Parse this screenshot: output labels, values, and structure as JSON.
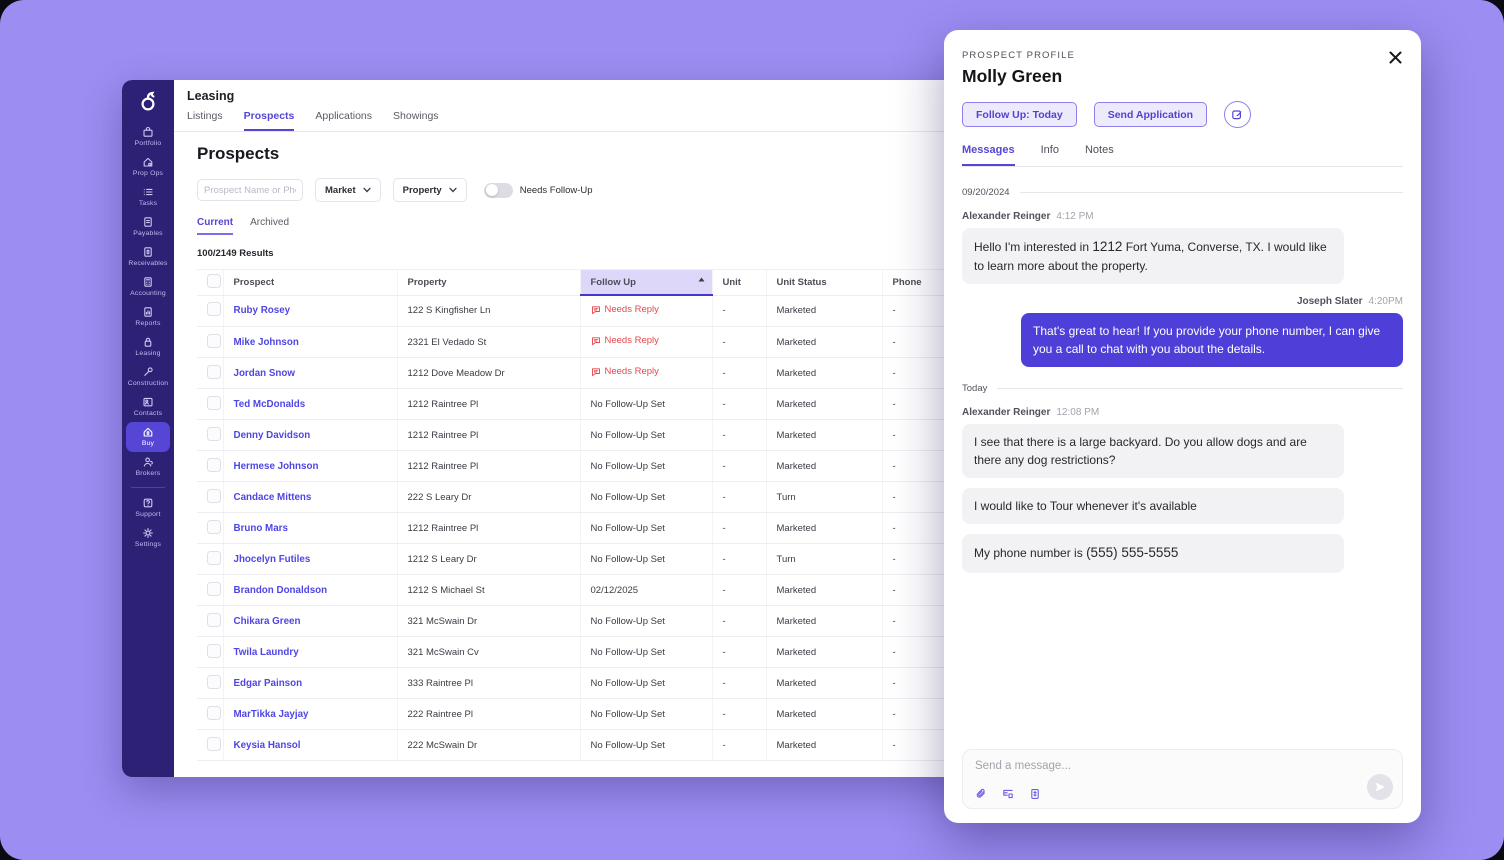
{
  "colors": {
    "background": "#9b8df2",
    "sidebar": "#2d2175",
    "sidebar_active": "#5546d5",
    "accent": "#5546d5",
    "link": "#4f46e5",
    "needs_reply": "#e5484d",
    "sent_bubble": "#4e3fd8",
    "received_bubble": "#f2f2f4",
    "sorted_header_bg": "#ddd8f9"
  },
  "sidebar": {
    "logo_icon": "app-logo",
    "items": [
      {
        "label": "Portfolio",
        "icon": "portfolio-icon"
      },
      {
        "label": "Prop Ops",
        "icon": "prop-ops-icon"
      },
      {
        "label": "Tasks",
        "icon": "tasks-icon"
      },
      {
        "label": "Payables",
        "icon": "payables-icon"
      },
      {
        "label": "Receivables",
        "icon": "receivables-icon"
      },
      {
        "label": "Accounting",
        "icon": "accounting-icon"
      },
      {
        "label": "Reports",
        "icon": "reports-icon"
      },
      {
        "label": "Leasing",
        "icon": "leasing-icon"
      },
      {
        "label": "Construction",
        "icon": "construction-icon"
      },
      {
        "label": "Contacts",
        "icon": "contacts-icon"
      },
      {
        "label": "Buy",
        "icon": "buy-icon",
        "active": true
      },
      {
        "label": "Brokers",
        "icon": "brokers-icon"
      },
      {
        "divider": true
      },
      {
        "label": "Support",
        "icon": "support-icon"
      },
      {
        "label": "Settings",
        "icon": "settings-icon"
      }
    ]
  },
  "header": {
    "title": "Leasing",
    "tabs": [
      {
        "label": "Listings"
      },
      {
        "label": "Prospects",
        "active": true
      },
      {
        "label": "Applications"
      },
      {
        "label": "Showings"
      }
    ]
  },
  "prospects": {
    "title": "Prospects",
    "filters": {
      "search_placeholder": "Prospect Name or Phone",
      "market_label": "Market",
      "property_label": "Property",
      "toggle_label": "Needs Follow-Up",
      "toggle_on": false
    },
    "subtabs": [
      {
        "label": "Current",
        "active": true
      },
      {
        "label": "Archived"
      }
    ],
    "results": "100/2149 Results",
    "table": {
      "columns": [
        "Prospect",
        "Property",
        "Follow Up",
        "Unit",
        "Unit Status",
        "Phone"
      ],
      "sorted_column": "Follow Up",
      "sort_direction": "asc",
      "needs_reply_icon": "chat-bubble-icon",
      "rows": [
        {
          "name": "Ruby Rosey",
          "property": "122 S Kingfisher Ln",
          "follow_up": "Needs Reply",
          "follow_up_type": "reply",
          "unit": "-",
          "unit_status": "Marketed",
          "phone": "-"
        },
        {
          "name": "Mike Johnson",
          "property": "2321 El Vedado St",
          "follow_up": "Needs Reply",
          "follow_up_type": "reply",
          "unit": "-",
          "unit_status": "Marketed",
          "phone": "-"
        },
        {
          "name": "Jordan Snow",
          "property": "1212 Dove Meadow Dr",
          "follow_up": "Needs Reply",
          "follow_up_type": "reply",
          "unit": "-",
          "unit_status": "Marketed",
          "phone": "-"
        },
        {
          "name": "Ted McDonalds",
          "property": "1212 Raintree Pl",
          "follow_up": "No Follow-Up Set",
          "follow_up_type": "none",
          "unit": "-",
          "unit_status": "Marketed",
          "phone": "-"
        },
        {
          "name": "Denny Davidson",
          "property": "1212 Raintree Pl",
          "follow_up": "No Follow-Up Set",
          "follow_up_type": "none",
          "unit": "-",
          "unit_status": "Marketed",
          "phone": "-"
        },
        {
          "name": "Hermese Johnson",
          "property": "1212 Raintree Pl",
          "follow_up": "No Follow-Up Set",
          "follow_up_type": "none",
          "unit": "-",
          "unit_status": "Marketed",
          "phone": "-"
        },
        {
          "name": "Candace Mittens",
          "property": "222 S Leary Dr",
          "follow_up": "No Follow-Up Set",
          "follow_up_type": "none",
          "unit": "-",
          "unit_status": "Turn",
          "phone": "-"
        },
        {
          "name": "Bruno Mars",
          "property": "1212 Raintree Pl",
          "follow_up": "No Follow-Up Set",
          "follow_up_type": "none",
          "unit": "-",
          "unit_status": "Marketed",
          "phone": "-"
        },
        {
          "name": "Jhocelyn Futiles",
          "property": "1212 S Leary Dr",
          "follow_up": "No Follow-Up Set",
          "follow_up_type": "none",
          "unit": "-",
          "unit_status": "Turn",
          "phone": "-"
        },
        {
          "name": "Brandon Donaldson",
          "property": "1212 S Michael St",
          "follow_up": "02/12/2025",
          "follow_up_type": "date",
          "unit": "-",
          "unit_status": "Marketed",
          "phone": "-"
        },
        {
          "name": "Chikara Green",
          "property": "321 McSwain Dr",
          "follow_up": "No Follow-Up Set",
          "follow_up_type": "none",
          "unit": "-",
          "unit_status": "Marketed",
          "phone": "-"
        },
        {
          "name": "Twila Laundry",
          "property": "321 McSwain Cv",
          "follow_up": "No Follow-Up Set",
          "follow_up_type": "none",
          "unit": "-",
          "unit_status": "Marketed",
          "phone": "-"
        },
        {
          "name": "Edgar Painson",
          "property": "333 Raintree Pl",
          "follow_up": "No Follow-Up Set",
          "follow_up_type": "none",
          "unit": "-",
          "unit_status": "Marketed",
          "phone": "-"
        },
        {
          "name": "MarTikka Jayjay",
          "property": "222 Raintree Pl",
          "follow_up": "No Follow-Up Set",
          "follow_up_type": "none",
          "unit": "-",
          "unit_status": "Marketed",
          "phone": "-"
        },
        {
          "name": "Keysia Hansol",
          "property": "222 McSwain Dr",
          "follow_up": "No Follow-Up Set",
          "follow_up_type": "none",
          "unit": "-",
          "unit_status": "Marketed",
          "phone": "-"
        }
      ]
    }
  },
  "panel": {
    "eyebrow": "PROSPECT PROFILE",
    "name": "Molly Green",
    "close_icon": "close-icon",
    "buttons": {
      "follow_up": "Follow Up: Today",
      "send_application": "Send Application",
      "edit_icon": "edit-icon"
    },
    "tabs": [
      {
        "label": "Messages",
        "active": true
      },
      {
        "label": "Info"
      },
      {
        "label": "Notes"
      }
    ],
    "messages": [
      {
        "type": "date",
        "label": "09/20/2024"
      },
      {
        "type": "received",
        "sender": "Alexander Reinger",
        "time": "4:12 PM",
        "parts": [
          {
            "t": "Hello I'm interested in "
          },
          {
            "t": "1212",
            "entity": true
          },
          {
            "t": " Fort Yuma, Converse, TX. I would like to learn more about the property."
          }
        ]
      },
      {
        "type": "sent",
        "sender": "Joseph Slater",
        "time": "4:20PM",
        "parts": [
          {
            "t": "That's great to hear! If you provide your phone number, I can give you a call to chat with you about the details."
          }
        ]
      },
      {
        "type": "date",
        "label": "Today"
      },
      {
        "type": "received",
        "sender": "Alexander Reinger",
        "time": "12:08 PM",
        "parts": [
          {
            "t": "I see that there is a large backyard. Do you allow dogs and are there any dog restrictions?"
          }
        ]
      },
      {
        "type": "received",
        "parts": [
          {
            "t": "I would like to Tour whenever it's available"
          }
        ]
      },
      {
        "type": "received",
        "parts": [
          {
            "t": "My phone number is "
          },
          {
            "t": "(555) 555-5555",
            "entity": true
          }
        ]
      }
    ],
    "compose": {
      "placeholder": "Send a message...",
      "toolbar_icons": [
        "attachment-icon",
        "template-icon",
        "payment-doc-icon"
      ],
      "send_icon": "send-icon"
    }
  }
}
